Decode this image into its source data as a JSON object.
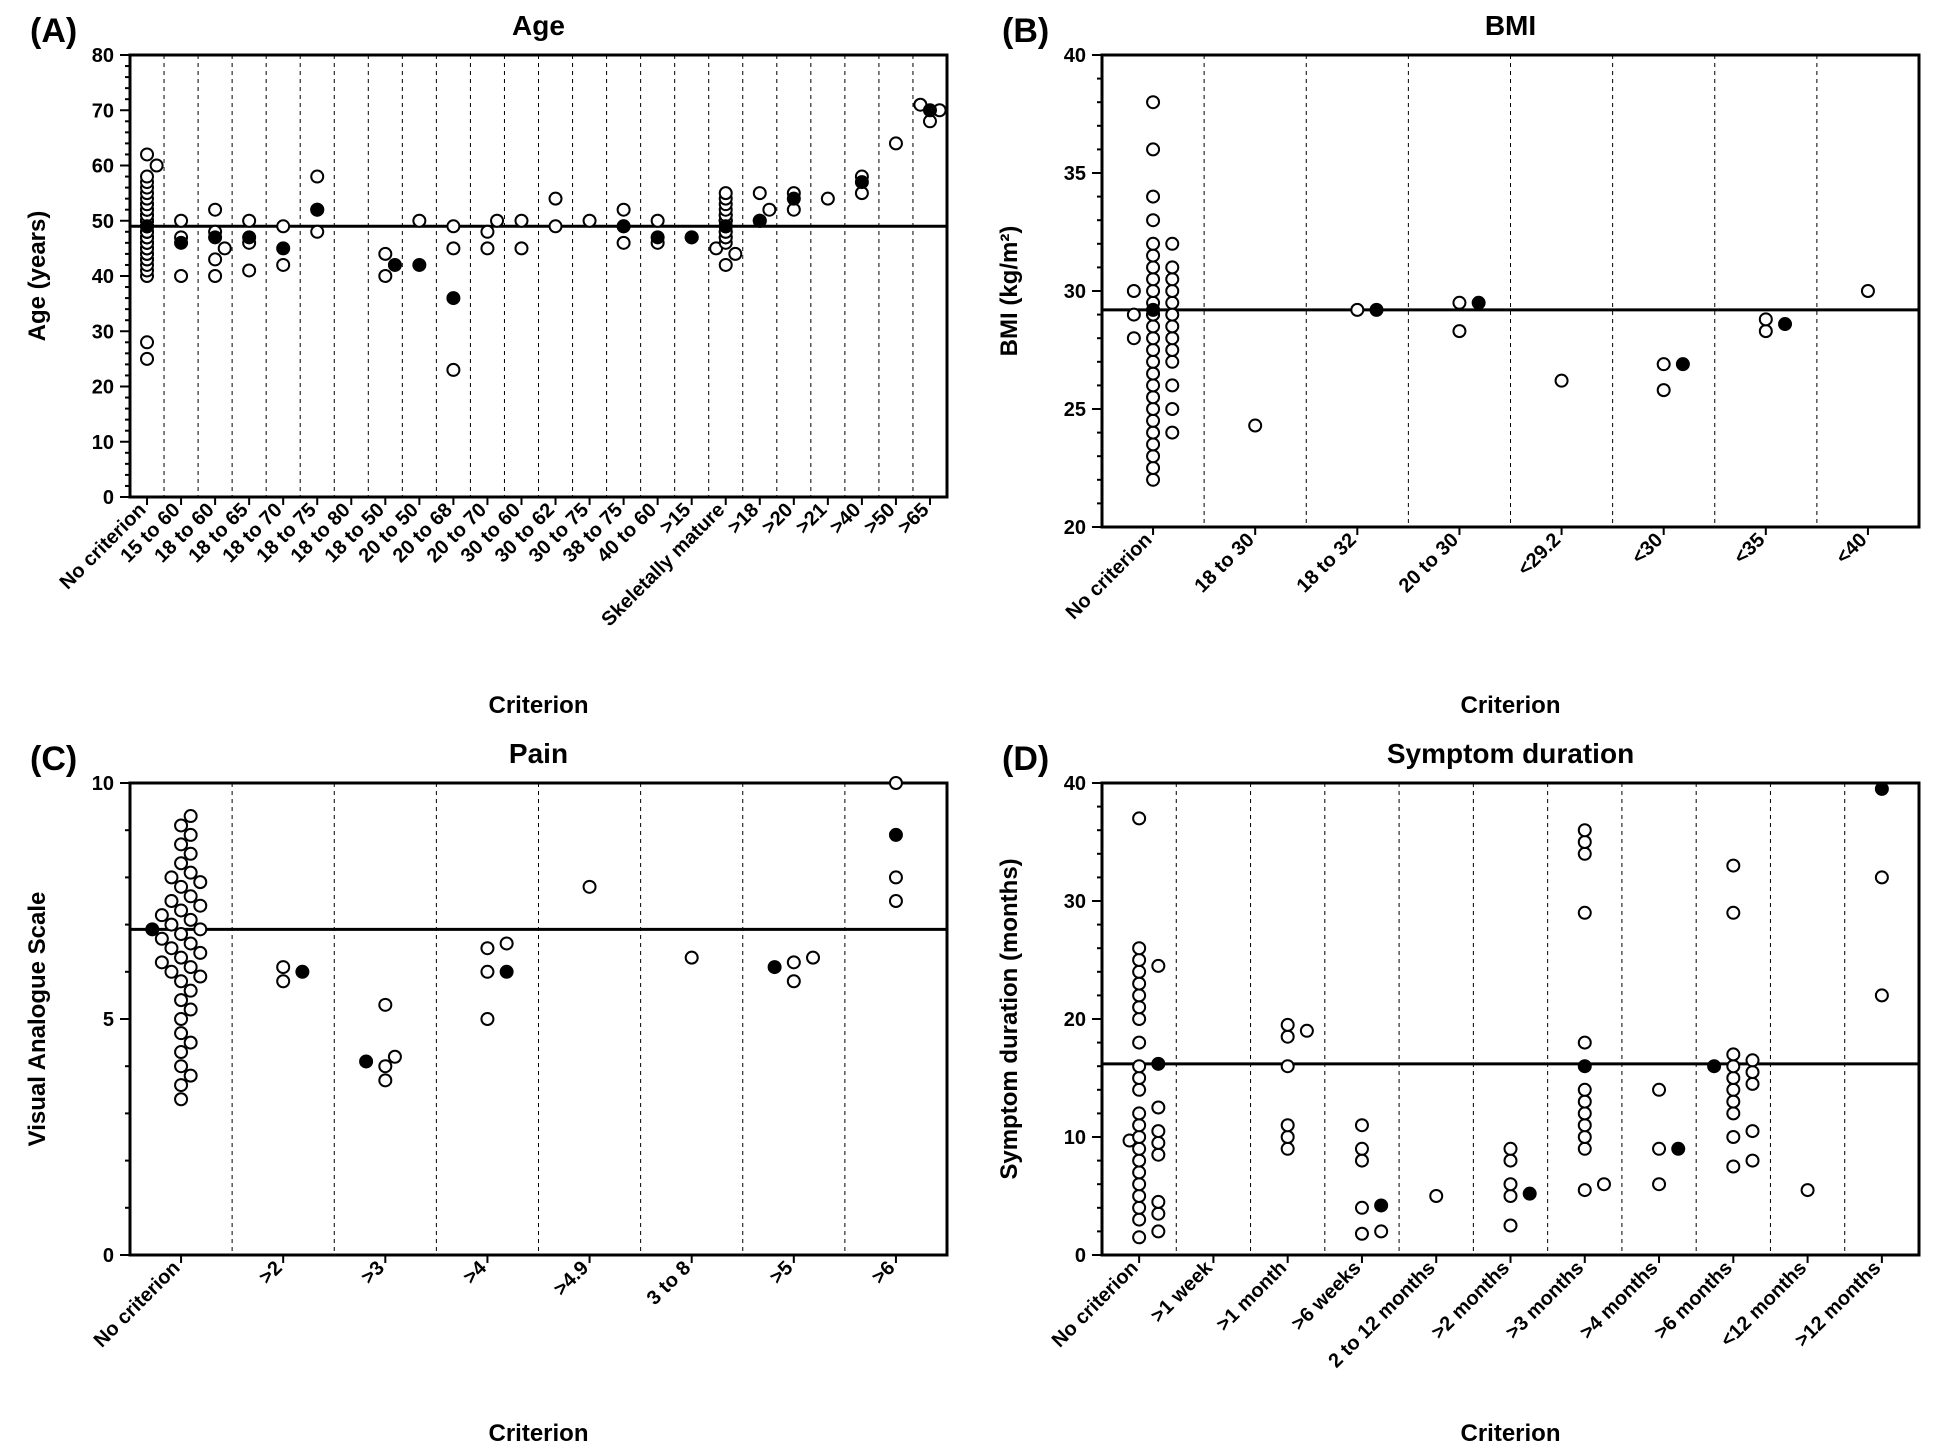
{
  "global": {
    "marker_radius": 6,
    "marker_stroke": "#000000",
    "marker_fill_open": "#ffffff",
    "marker_fill_solid": "#000000",
    "axis_color": "#000000",
    "separator_dash": "4 4",
    "background": "#ffffff",
    "title_fontsize": 28,
    "tag_fontsize": 34,
    "label_fontsize": 20,
    "axislabel_fontsize": 24
  },
  "panels": [
    {
      "key": "A",
      "tag": "(A)",
      "title": "Age",
      "ylabel": "Age (years)",
      "xlabel": "Criterion",
      "ylim": [
        0,
        80
      ],
      "ytick_step": 10,
      "reference": 49,
      "categories": [
        "No criterion",
        "15 to 60",
        "18 to 60",
        "18 to 65",
        "18 to 70",
        "18 to 75",
        "18 to 80",
        "18 to 50",
        "20 to 50",
        "20 to 68",
        "20 to 70",
        "30 to 60",
        "30 to 62",
        "30 to 75",
        "38 to 75",
        "40 to 60",
        ">15",
        "Skeletally mature",
        ">18",
        ">20",
        ">21",
        ">40",
        ">50",
        ">65"
      ],
      "groups": [
        {
          "open": [
            25,
            28,
            40,
            41,
            42,
            43,
            43,
            44,
            44,
            45,
            45,
            45,
            46,
            46,
            46,
            46,
            47,
            47,
            47,
            47,
            48,
            48,
            48,
            48,
            48,
            49,
            49,
            49,
            49,
            49,
            50,
            50,
            50,
            50,
            50,
            51,
            51,
            51,
            52,
            52,
            52,
            53,
            53,
            54,
            55,
            56,
            57,
            58,
            60,
            62
          ],
          "solid": [
            49
          ]
        },
        {
          "open": [
            40,
            47,
            50
          ],
          "solid": [
            46
          ]
        },
        {
          "open": [
            40,
            43,
            45,
            48,
            52
          ],
          "solid": [
            47
          ]
        },
        {
          "open": [
            41,
            46,
            50
          ],
          "solid": [
            47
          ]
        },
        {
          "open": [
            42,
            49
          ],
          "solid": [
            45
          ]
        },
        {
          "open": [
            48,
            52,
            58
          ],
          "solid": [
            52
          ]
        },
        {
          "open": [],
          "solid": []
        },
        {
          "open": [
            40,
            44
          ],
          "solid": [
            42
          ]
        },
        {
          "open": [
            50
          ],
          "solid": [
            42
          ]
        },
        {
          "open": [
            23,
            45,
            49
          ],
          "solid": [
            36
          ]
        },
        {
          "open": [
            45,
            48,
            50
          ],
          "solid": []
        },
        {
          "open": [
            45,
            50
          ],
          "solid": []
        },
        {
          "open": [
            49,
            54
          ],
          "solid": []
        },
        {
          "open": [
            50
          ],
          "solid": []
        },
        {
          "open": [
            46,
            49,
            52
          ],
          "solid": [
            49
          ]
        },
        {
          "open": [
            46,
            50
          ],
          "solid": [
            47
          ]
        },
        {
          "open": [
            47
          ],
          "solid": [
            47
          ]
        },
        {
          "open": [
            42,
            44,
            45,
            46,
            47,
            47,
            48,
            48,
            49,
            49,
            49,
            50,
            50,
            50,
            51,
            51,
            52,
            53,
            54,
            55
          ],
          "solid": [
            49
          ]
        },
        {
          "open": [
            50,
            52,
            55
          ],
          "solid": [
            50
          ]
        },
        {
          "open": [
            52,
            55
          ],
          "solid": [
            54
          ]
        },
        {
          "open": [
            54
          ],
          "solid": []
        },
        {
          "open": [
            55,
            58
          ],
          "solid": [
            57
          ]
        },
        {
          "open": [
            64
          ],
          "solid": []
        },
        {
          "open": [
            68,
            70,
            71
          ],
          "solid": [
            70
          ]
        }
      ]
    },
    {
      "key": "B",
      "tag": "(B)",
      "title": "BMI",
      "ylabel": "BMI (kg/m²)",
      "xlabel": "Criterion",
      "ylim": [
        20,
        40
      ],
      "ytick_step": 5,
      "reference": 29.2,
      "categories": [
        "No criterion",
        "18 to 30",
        "18 to 32",
        "20 to 30",
        "<29.2",
        "<30",
        "<35",
        "<40"
      ],
      "groups": [
        {
          "open": [
            22,
            22.5,
            23,
            23.5,
            24,
            24,
            24.5,
            25,
            25,
            25.5,
            26,
            26,
            26.5,
            27,
            27,
            27.5,
            27.5,
            28,
            28,
            28,
            28.5,
            28.5,
            29,
            29,
            29,
            29,
            29.5,
            29.5,
            30,
            30,
            30,
            30.5,
            30.5,
            31,
            31,
            31.5,
            32,
            32,
            33,
            34,
            36,
            38
          ],
          "solid": [
            29.2
          ]
        },
        {
          "open": [
            24.3
          ],
          "solid": []
        },
        {
          "open": [
            29.2
          ],
          "solid": [
            29.2
          ]
        },
        {
          "open": [
            28.3,
            29.5
          ],
          "solid": [
            29.5
          ]
        },
        {
          "open": [
            26.2
          ],
          "solid": []
        },
        {
          "open": [
            25.8,
            26.9
          ],
          "solid": [
            26.9
          ]
        },
        {
          "open": [
            28.3,
            28.8
          ],
          "solid": [
            28.6
          ]
        },
        {
          "open": [
            30
          ],
          "solid": []
        }
      ]
    },
    {
      "key": "C",
      "tag": "(C)",
      "title": "Pain",
      "ylabel": "Visual Analogue Scale",
      "xlabel": "Criterion",
      "ylim": [
        0,
        10
      ],
      "ytick_step": 5,
      "reference": 6.9,
      "categories": [
        "No criterion",
        ">2",
        ">3",
        ">4",
        ">4.9",
        "3 to 8",
        ">5",
        ">6"
      ],
      "groups": [
        {
          "open": [
            3.3,
            3.6,
            3.8,
            4.0,
            4.3,
            4.5,
            4.7,
            5.0,
            5.2,
            5.4,
            5.6,
            5.8,
            5.9,
            6.0,
            6.1,
            6.2,
            6.3,
            6.4,
            6.5,
            6.6,
            6.7,
            6.8,
            6.9,
            7.0,
            7.1,
            7.2,
            7.3,
            7.4,
            7.5,
            7.6,
            7.8,
            7.9,
            8.0,
            8.1,
            8.3,
            8.5,
            8.7,
            8.9,
            9.1,
            9.3
          ],
          "solid": [
            6.9
          ]
        },
        {
          "open": [
            5.8,
            6.1
          ],
          "solid": [
            6.0
          ]
        },
        {
          "open": [
            3.7,
            4.0,
            4.2,
            5.3
          ],
          "solid": [
            4.1
          ]
        },
        {
          "open": [
            5.0,
            6.0,
            6.5,
            6.6
          ],
          "solid": [
            6.0
          ]
        },
        {
          "open": [
            7.8
          ],
          "solid": []
        },
        {
          "open": [
            6.3
          ],
          "solid": []
        },
        {
          "open": [
            5.8,
            6.2,
            6.3
          ],
          "solid": [
            6.1
          ]
        },
        {
          "open": [
            7.5,
            8.0,
            10.0
          ],
          "solid": [
            8.9
          ]
        }
      ]
    },
    {
      "key": "D",
      "tag": "(D)",
      "title": "Symptom duration",
      "ylabel": "Symptom duration (months)",
      "xlabel": "Criterion",
      "ylim": [
        0,
        40
      ],
      "ytick_step": 10,
      "reference": 16.2,
      "categories": [
        "No criterion",
        ">1 week",
        ">1 month",
        ">6 weeks",
        "2 to 12 months",
        ">2 months",
        ">3 months",
        ">4 months",
        ">6 months",
        "<12 months",
        ">12 months"
      ],
      "groups": [
        {
          "open": [
            1.5,
            2,
            3,
            3.5,
            4,
            4.5,
            5,
            6,
            7,
            8,
            8.5,
            9,
            9.5,
            9.7,
            10,
            10.5,
            11,
            12,
            12.5,
            14,
            15,
            16,
            18,
            20,
            21,
            22,
            23,
            24,
            24.5,
            25,
            26,
            37
          ],
          "solid": [
            16.2
          ]
        },
        {
          "open": [],
          "solid": []
        },
        {
          "open": [
            9,
            10,
            11,
            16,
            18.5,
            19,
            19.5
          ],
          "solid": []
        },
        {
          "open": [
            1.8,
            2,
            4,
            8,
            9,
            11
          ],
          "solid": [
            4.2
          ]
        },
        {
          "open": [
            5
          ],
          "solid": []
        },
        {
          "open": [
            2.5,
            5,
            6,
            8,
            9
          ],
          "solid": [
            5.2
          ]
        },
        {
          "open": [
            5.5,
            6,
            9,
            10,
            11,
            12,
            13,
            14,
            18,
            29,
            34,
            35,
            36
          ],
          "solid": [
            16
          ]
        },
        {
          "open": [
            6,
            9,
            14
          ],
          "solid": [
            9
          ]
        },
        {
          "open": [
            7.5,
            8,
            10,
            10.5,
            12,
            13,
            14,
            14.5,
            15,
            15.5,
            16,
            16.5,
            17,
            29,
            33
          ],
          "solid": [
            16
          ]
        },
        {
          "open": [
            5.5
          ],
          "solid": []
        },
        {
          "open": [
            22,
            32
          ],
          "solid": [
            39.5
          ]
        }
      ]
    }
  ]
}
